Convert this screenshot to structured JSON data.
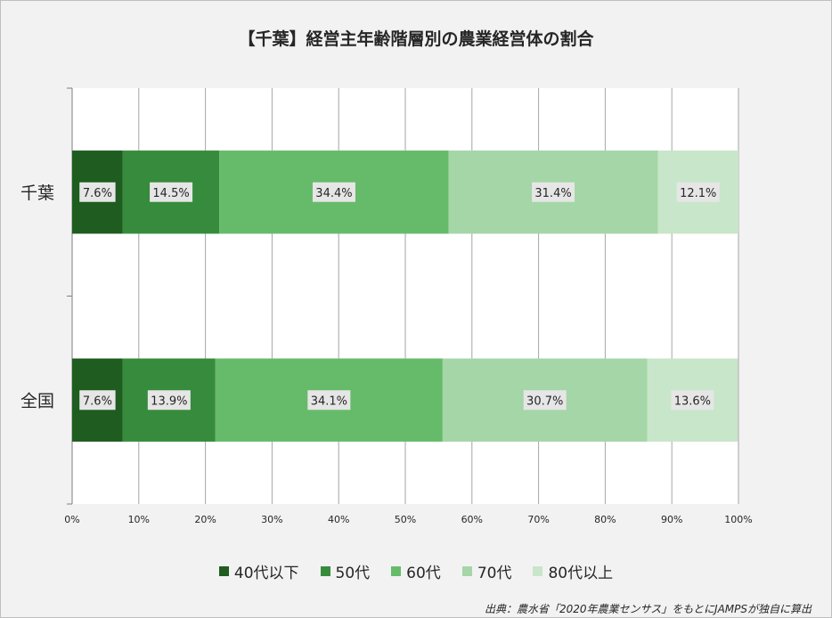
{
  "chart_data": {
    "type": "bar",
    "orientation": "horizontal",
    "stacked": true,
    "title": "【千葉】経営主年齢階層別の農業経営体の割合",
    "categories": [
      "千葉",
      "全国"
    ],
    "series": [
      {
        "name": "40代以下",
        "color": "#1e5c20",
        "values": [
          7.6,
          7.6
        ],
        "labels": [
          "7.6%",
          "7.6%"
        ]
      },
      {
        "name": "50代",
        "color": "#378b3c",
        "values": [
          14.5,
          13.9
        ],
        "labels": [
          "14.5%",
          "13.9%"
        ]
      },
      {
        "name": "60代",
        "color": "#66bb6a",
        "values": [
          34.4,
          34.1
        ],
        "labels": [
          "34.4%",
          "34.1%"
        ]
      },
      {
        "name": "70代",
        "color": "#a5d6a7",
        "values": [
          31.4,
          30.7
        ],
        "labels": [
          "31.4%",
          "30.7%"
        ]
      },
      {
        "name": "80代以上",
        "color": "#c8e6c9",
        "values": [
          12.1,
          13.6
        ],
        "labels": [
          "12.1%",
          "13.6%"
        ]
      }
    ],
    "xlim": [
      0,
      100
    ],
    "x_ticks": [
      "0%",
      "10%",
      "20%",
      "30%",
      "40%",
      "50%",
      "60%",
      "70%",
      "80%",
      "90%",
      "100%"
    ],
    "grid": true,
    "legend_position": "bottom"
  },
  "source_note": "出典：農水省「2020年農業センサス」をもとにJAMPSが独自に算出"
}
